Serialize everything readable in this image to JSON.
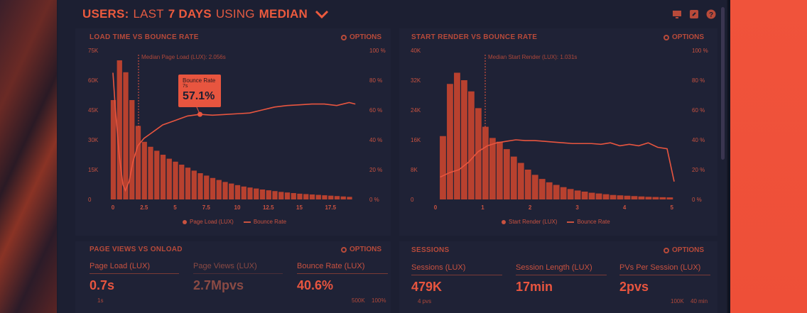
{
  "header": {
    "title_parts": [
      "USERS:",
      "LAST",
      "7 DAYS",
      "USING",
      "MEDIAN"
    ]
  },
  "chart_left": {
    "title": "LOAD TIME VS BOUNCE RATE",
    "options_label": "OPTIONS",
    "median_label": "Median Page Load (LUX): 2.056s",
    "tooltip_title": "Bounce Rate",
    "tooltip_sub": "7s",
    "tooltip_value": "57.1%",
    "legend_bars": "Page Load (LUX)",
    "legend_line": "Bounce Rate"
  },
  "chart_right": {
    "title": "START RENDER VS BOUNCE RATE",
    "options_label": "OPTIONS",
    "median_label": "Median Start Render (LUX): 1.031s",
    "legend_bars": "Start Render (LUX)",
    "legend_line": "Bounce Rate"
  },
  "chart_data": [
    {
      "type": "bar",
      "y_ticks": [
        "75K",
        "60K",
        "45K",
        "30K",
        "15K",
        "0"
      ],
      "y2_ticks": [
        "100 %",
        "80 %",
        "60 %",
        "40 %",
        "20 %",
        "0 %"
      ],
      "x_ticks": [
        "0",
        "2.5",
        "5",
        "7.5",
        "10",
        "12.5",
        "15",
        "17.5"
      ],
      "ylim": [
        0,
        75000
      ],
      "y2lim": [
        0,
        100
      ],
      "xlim": [
        0,
        20
      ],
      "bar_x": [
        0,
        0.5,
        1,
        1.5,
        2,
        2.5,
        3,
        3.5,
        4,
        4.5,
        5,
        5.5,
        6,
        6.5,
        7,
        7.5,
        8,
        8.5,
        9,
        9.5,
        10,
        10.5,
        11,
        11.5,
        12,
        12.5,
        13,
        13.5,
        14,
        14.5,
        15,
        15.5,
        16,
        16.5,
        17,
        17.5,
        18,
        18.5,
        19
      ],
      "bar_values": [
        50000,
        70000,
        64000,
        50000,
        37000,
        29000,
        26500,
        24500,
        22500,
        20500,
        19000,
        17500,
        16000,
        14500,
        13200,
        12000,
        10800,
        9800,
        8800,
        8000,
        7200,
        6500,
        6000,
        5500,
        5000,
        4600,
        4200,
        3800,
        3500,
        3200,
        2900,
        2700,
        2500,
        2300,
        2100,
        1900,
        1700,
        1500,
        1300
      ],
      "line_x": [
        0,
        0.2,
        0.5,
        0.8,
        1.0,
        1.3,
        1.6,
        2.0,
        2.5,
        3,
        3.5,
        4,
        5,
        6,
        7,
        8,
        9,
        10,
        11,
        12,
        13,
        14,
        15,
        16,
        17,
        18,
        19,
        19.5
      ],
      "line_y": [
        85,
        60,
        30,
        10,
        6,
        12,
        25,
        36,
        41,
        44,
        47,
        50,
        53,
        56,
        57.1,
        56.5,
        57,
        57.5,
        58,
        60,
        62,
        63,
        63.5,
        64,
        64,
        63,
        65,
        64
      ]
    },
    {
      "type": "bar",
      "y_ticks": [
        "40K",
        "32K",
        "24K",
        "16K",
        "8K",
        "0"
      ],
      "y2_ticks": [
        "100 %",
        "80 %",
        "60 %",
        "40 %",
        "20 %",
        "0 %"
      ],
      "x_ticks": [
        "0",
        "1",
        "2",
        "3",
        "4",
        "5"
      ],
      "ylim": [
        0,
        40000
      ],
      "y2lim": [
        0,
        100
      ],
      "xlim": [
        0,
        5.2
      ],
      "bar_x": [
        0.15,
        0.3,
        0.45,
        0.6,
        0.75,
        0.9,
        1.05,
        1.2,
        1.35,
        1.5,
        1.65,
        1.8,
        1.95,
        2.1,
        2.25,
        2.4,
        2.55,
        2.7,
        2.85,
        3.0,
        3.15,
        3.3,
        3.45,
        3.6,
        3.75,
        3.9,
        4.05,
        4.2,
        4.35,
        4.5,
        4.65,
        4.8,
        4.95
      ],
      "bar_values": [
        17000,
        31000,
        34000,
        32000,
        29000,
        24500,
        19500,
        16500,
        15500,
        13500,
        11500,
        9800,
        8000,
        6600,
        5500,
        4600,
        3900,
        3300,
        2800,
        2400,
        2100,
        1800,
        1600,
        1400,
        1200,
        1100,
        1000,
        900,
        800,
        700,
        650,
        600,
        550
      ],
      "line_x": [
        0.1,
        0.3,
        0.5,
        0.7,
        0.9,
        1.1,
        1.3,
        1.5,
        1.7,
        1.9,
        2.1,
        2.3,
        2.5,
        2.7,
        2.9,
        3.1,
        3.3,
        3.5,
        3.7,
        3.9,
        4.1,
        4.3,
        4.5,
        4.7,
        4.9,
        5.05
      ],
      "line_y": [
        15,
        18,
        20,
        25,
        32,
        36,
        38,
        39,
        40,
        39.5,
        39.5,
        39,
        38.5,
        38,
        37.5,
        37.5,
        37.5,
        37,
        38,
        36,
        37,
        36,
        38,
        35,
        34,
        12
      ]
    }
  ],
  "panel_pageviews": {
    "title": "PAGE VIEWS VS ONLOAD",
    "options_label": "OPTIONS",
    "metrics": [
      {
        "label": "Page Load (LUX)",
        "value": "0.7s",
        "sub": "1s"
      },
      {
        "label": "Page Views (LUX)",
        "value": "2.7Mpvs",
        "sub": ""
      },
      {
        "label": "Bounce Rate (LUX)",
        "value": "40.6%",
        "sub": ""
      }
    ],
    "right_axis": [
      "500K",
      "100%"
    ]
  },
  "panel_sessions": {
    "title": "SESSIONS",
    "options_label": "OPTIONS",
    "metrics": [
      {
        "label": "Sessions (LUX)",
        "value": "479K",
        "sub": "4 pvs"
      },
      {
        "label": "Session Length (LUX)",
        "value": "17min",
        "sub": ""
      },
      {
        "label": "PVs Per Session (LUX)",
        "value": "2pvs",
        "sub": ""
      }
    ],
    "right_axis": [
      "100K",
      "40 min"
    ]
  },
  "colors": {
    "accent": "#e8553f",
    "bar": "#b8412f",
    "line": "#e8553f",
    "background": "#1c1f32"
  }
}
